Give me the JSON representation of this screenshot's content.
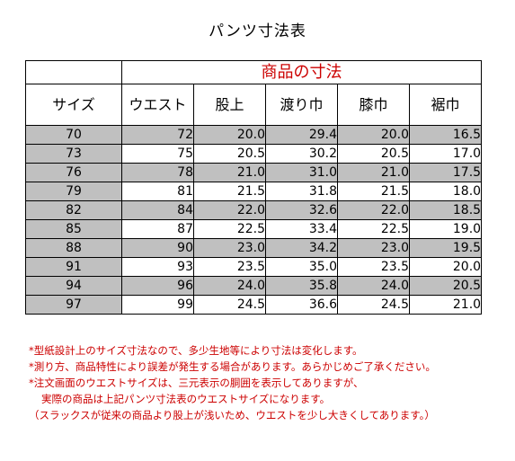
{
  "title": "パンツ寸法表",
  "table": {
    "group_header": "商品の寸法",
    "columns": [
      "サイズ",
      "ウエスト",
      "股上",
      "渡り巾",
      "膝巾",
      "裾巾"
    ],
    "rows": [
      [
        "70",
        "72",
        "20.0",
        "29.4",
        "20.0",
        "16.5"
      ],
      [
        "73",
        "75",
        "20.5",
        "30.2",
        "20.5",
        "17.0"
      ],
      [
        "76",
        "78",
        "21.0",
        "31.0",
        "21.0",
        "17.5"
      ],
      [
        "79",
        "81",
        "21.5",
        "31.8",
        "21.5",
        "18.0"
      ],
      [
        "82",
        "84",
        "22.0",
        "32.6",
        "22.0",
        "18.5"
      ],
      [
        "85",
        "87",
        "22.5",
        "33.4",
        "22.5",
        "19.0"
      ],
      [
        "88",
        "90",
        "23.0",
        "34.2",
        "23.0",
        "19.5"
      ],
      [
        "91",
        "93",
        "23.5",
        "35.0",
        "23.5",
        "20.0"
      ],
      [
        "94",
        "96",
        "24.0",
        "35.8",
        "24.0",
        "20.5"
      ],
      [
        "97",
        "99",
        "24.5",
        "36.6",
        "24.5",
        "21.0"
      ]
    ],
    "shade_color": "#c0c0c0"
  },
  "notes": [
    "*型紙設計上のサイズ寸法なので、多少生地等により寸法は変化します。",
    "*測り方、商品特性により誤差が発生する場合があります。あらかじめご了承ください。",
    "*注文画面のウエストサイズは、三元表示の胴囲を表示してありますが、",
    "実際の商品は上記パンツ寸法表のウエストサイズになります。",
    "（スラックスが従来の商品より股上が浅いため、ウエストを少し大きくしてあります。）"
  ],
  "note_color": "#cc0000"
}
